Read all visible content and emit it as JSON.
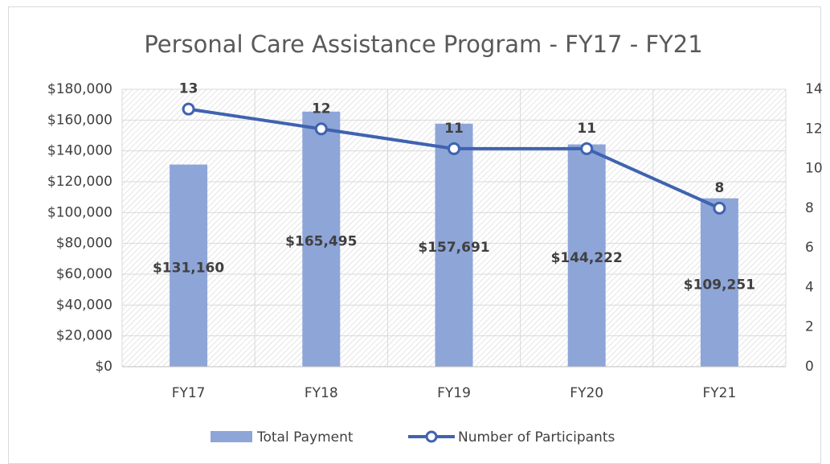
{
  "chart_data": {
    "type": "bar",
    "title": "Personal Care Assistance Program -  FY17 - FY21",
    "categories": [
      "FY17",
      "FY18",
      "FY19",
      "FY20",
      "FY21"
    ],
    "series": [
      {
        "name": "Total Payment",
        "type": "bar",
        "color": "#8EA5D8",
        "values": [
          131160,
          165495,
          157691,
          144222,
          109251
        ],
        "value_labels": [
          "$131,160",
          "$165,495",
          "$157,691",
          "$144,222",
          "$109,251"
        ]
      },
      {
        "name": "Number of Participants",
        "type": "line",
        "axis": "y2",
        "color": "#3F63B0",
        "values": [
          13,
          12,
          11,
          11,
          8
        ]
      }
    ],
    "ylim": [
      0,
      180000
    ],
    "yticks": [
      {
        "value": 0,
        "label": "$0"
      },
      {
        "value": 20000,
        "label": "$20,000"
      },
      {
        "value": 40000,
        "label": "$40,000"
      },
      {
        "value": 60000,
        "label": "$60,000"
      },
      {
        "value": 80000,
        "label": "$80,000"
      },
      {
        "value": 100000,
        "label": "$100,000"
      },
      {
        "value": 120000,
        "label": "$120,000"
      },
      {
        "value": 140000,
        "label": "$140,000"
      },
      {
        "value": 160000,
        "label": "$160,000"
      },
      {
        "value": 180000,
        "label": "$180,000"
      }
    ],
    "y2lim": [
      0,
      14
    ],
    "y2ticks": [
      0,
      2,
      4,
      6,
      8,
      10,
      12,
      14
    ],
    "grid": true,
    "legend": "bottom"
  }
}
